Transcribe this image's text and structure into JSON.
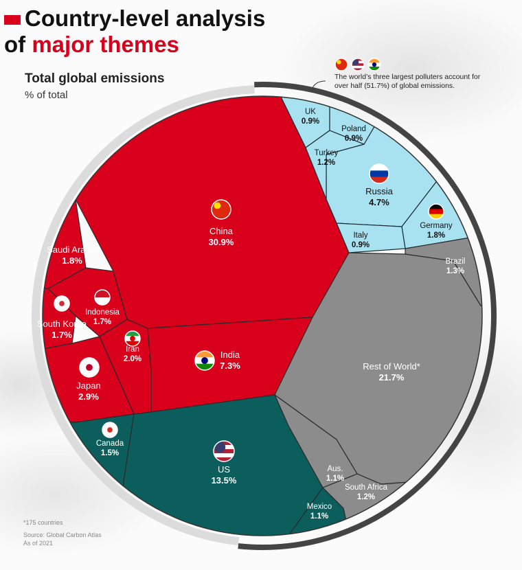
{
  "header": {
    "title_line1": "Country-level analysis",
    "title_of": "of",
    "title_highlight": "major themes"
  },
  "chart_data": {
    "type": "voronoi-treemap",
    "subtitle": "Total global emissions",
    "unit_label": "% of total",
    "annotation": "The world’s three largest polluters account for over half (51.7%) of global emissions.",
    "footnote": "*175 countries",
    "source": "Source: Global Carbon Atlas",
    "date": "As of 2021",
    "groups": [
      {
        "color": "#d9001b",
        "categories": [
          "China",
          "India",
          "Iran",
          "Japan",
          "South Korea",
          "Indonesia",
          "Saudi Arabia"
        ],
        "values": [
          30.9,
          7.3,
          2.0,
          2.9,
          1.7,
          1.7,
          1.8
        ],
        "value_labels": [
          "30.9%",
          "7.3%",
          "2.0%",
          "2.9%",
          "1.7%",
          "1.7%",
          "1.8%"
        ]
      },
      {
        "color": "#0b5e5b",
        "categories": [
          "US",
          "Canada",
          "Mexico"
        ],
        "values": [
          13.5,
          1.5,
          1.1
        ],
        "value_labels": [
          "13.5%",
          "1.5%",
          "1.1%"
        ]
      },
      {
        "color": "#a8e2f1",
        "categories": [
          "Russia",
          "Germany",
          "UK",
          "Poland",
          "Turkey",
          "Italy"
        ],
        "values": [
          4.7,
          1.8,
          0.9,
          0.9,
          1.2,
          0.9
        ],
        "value_labels": [
          "4.7%",
          "1.8%",
          "0.9%",
          "0.9%",
          "1.2%",
          "0.9%"
        ]
      },
      {
        "color": "#8c8c8c",
        "categories": [
          "Rest of World*",
          "Brazil",
          "South Africa",
          "Aus."
        ],
        "values": [
          21.7,
          1.3,
          1.2,
          1.1
        ],
        "value_labels": [
          "21.7%",
          "1.3%",
          "1.2%",
          "1.1%"
        ]
      }
    ]
  }
}
